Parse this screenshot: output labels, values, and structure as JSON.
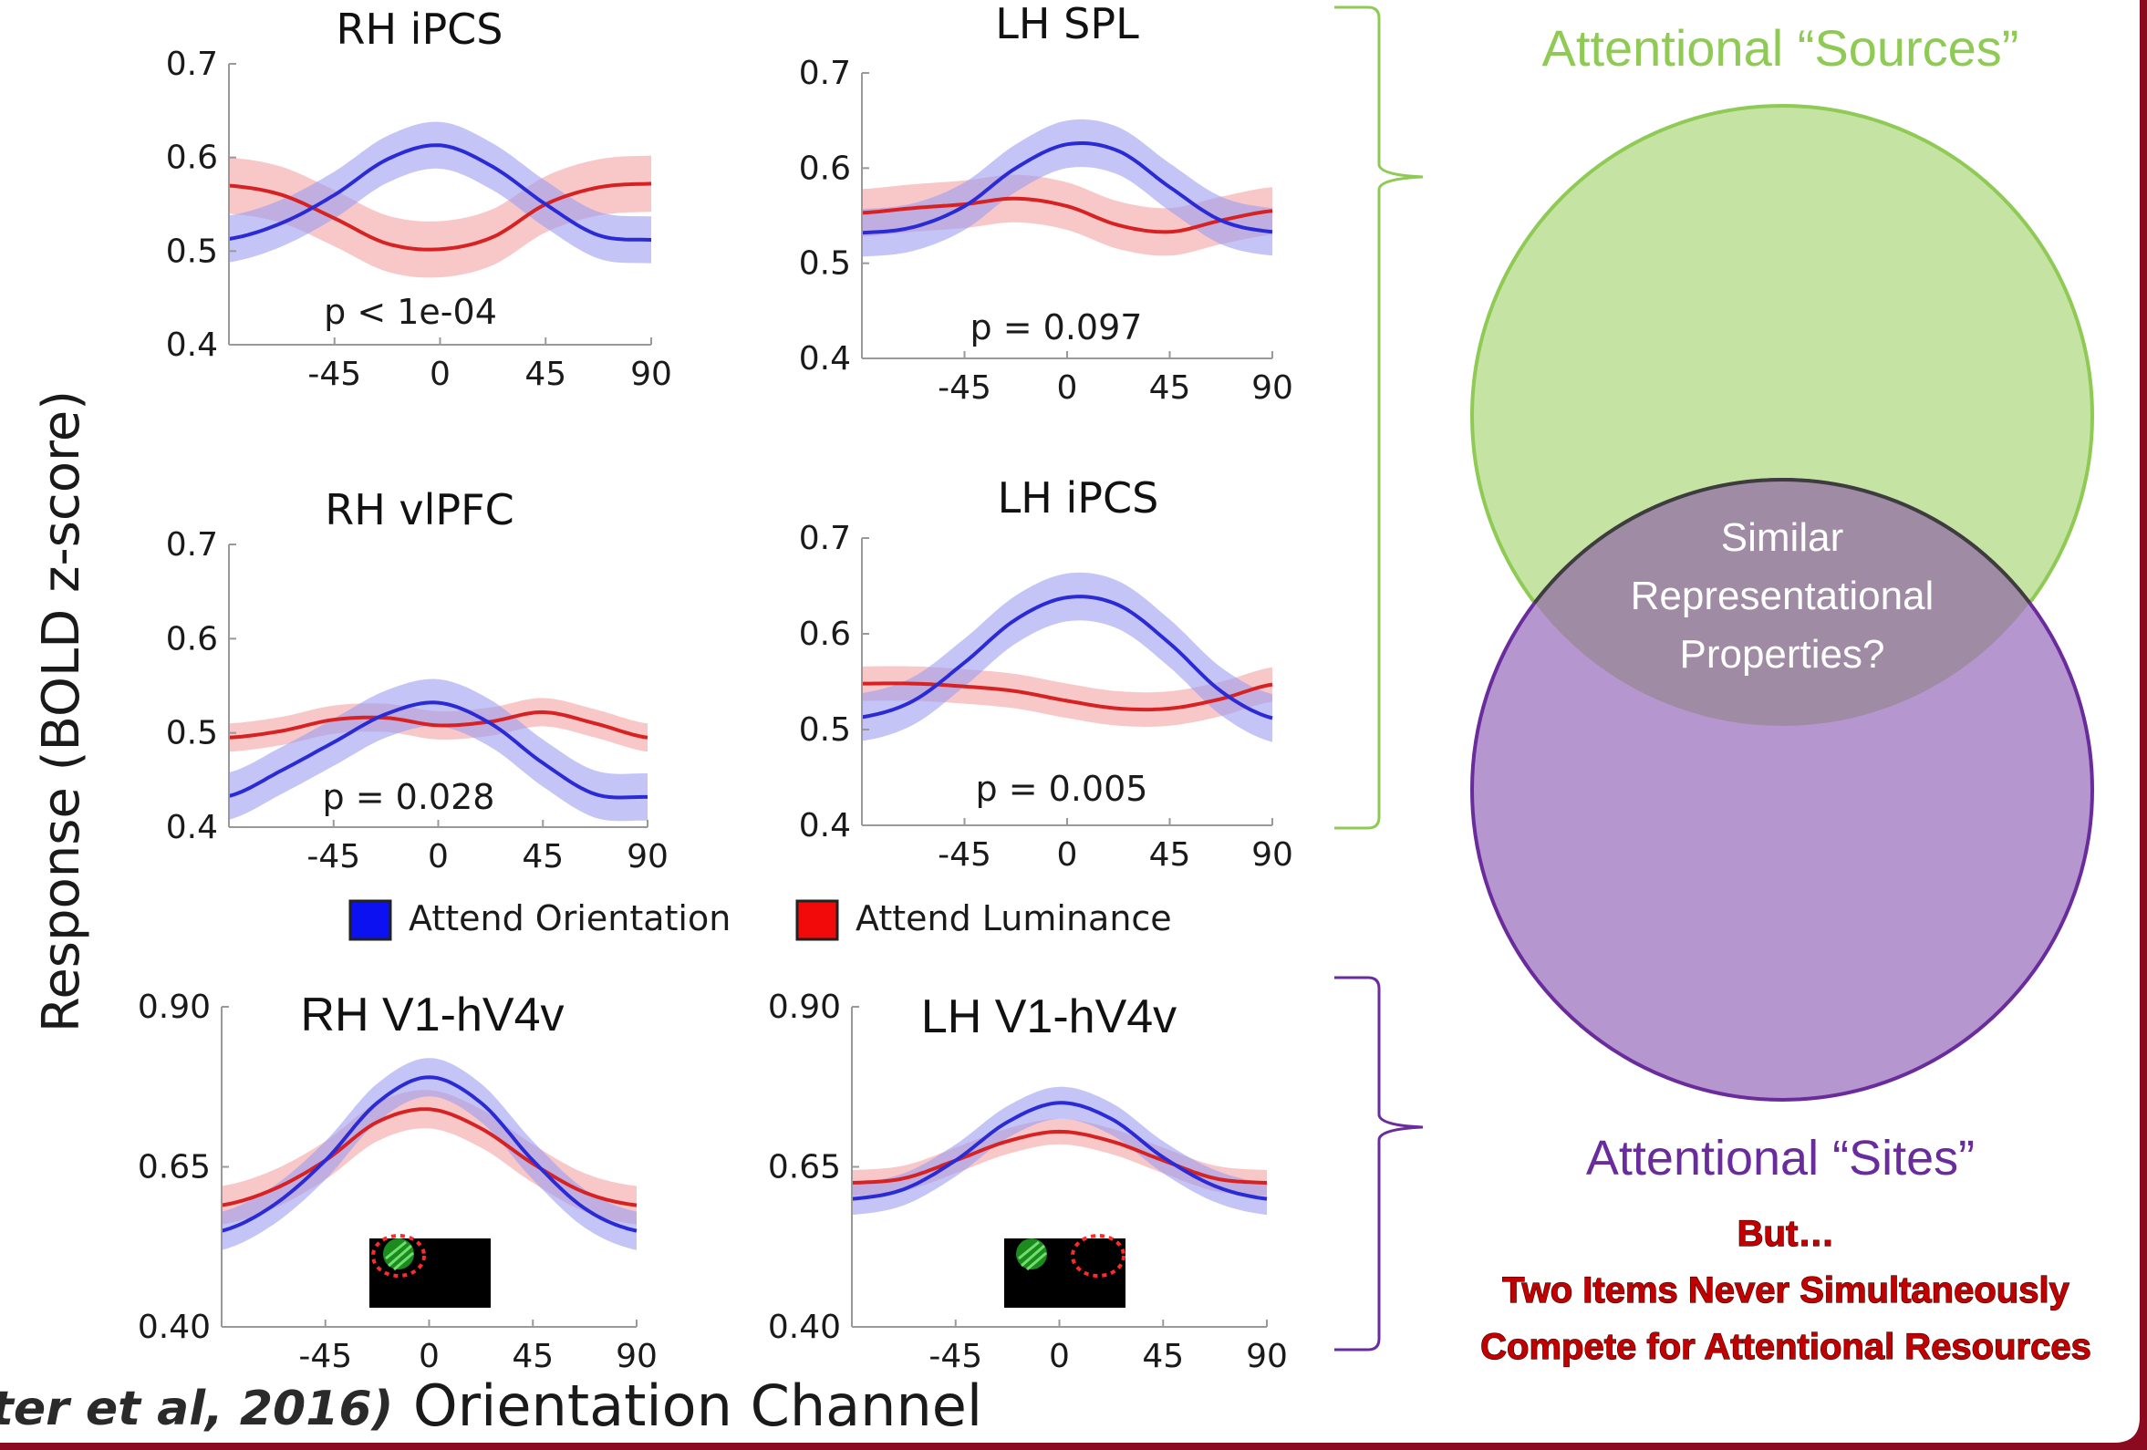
{
  "chart_data": [
    {
      "type": "line",
      "title": "RH iPCS",
      "x": [
        -90,
        -67.5,
        -45,
        -22.5,
        0,
        22.5,
        45,
        67.5,
        90
      ],
      "xticks": [
        "-45",
        "0",
        "45",
        "90"
      ],
      "ylim": [
        0.4,
        0.7
      ],
      "yticks": [
        "0.4",
        "0.5",
        "0.6",
        "0.7"
      ],
      "annotation": "p < 1e-04",
      "series": [
        {
          "name": "Attend Orientation",
          "color": "#2b2bd6",
          "band_color": "#9d9df2",
          "values": [
            0.513,
            0.53,
            0.56,
            0.598,
            0.613,
            0.59,
            0.55,
            0.517,
            0.512
          ],
          "error": 0.025
        },
        {
          "name": "Attend Luminance",
          "color": "#d62222",
          "band_color": "#f4a3a3",
          "values": [
            0.57,
            0.56,
            0.535,
            0.508,
            0.502,
            0.515,
            0.55,
            0.568,
            0.572
          ],
          "error": 0.03
        }
      ]
    },
    {
      "type": "line",
      "title": "LH SPL",
      "x": [
        -90,
        -67.5,
        -45,
        -22.5,
        0,
        22.5,
        45,
        67.5,
        90
      ],
      "xticks": [
        "-45",
        "0",
        "45",
        "90"
      ],
      "ylim": [
        0.4,
        0.7
      ],
      "yticks": [
        "0.4",
        "0.5",
        "0.6",
        "0.7"
      ],
      "annotation": "p = 0.097",
      "series": [
        {
          "name": "Attend Orientation",
          "color": "#2b2bd6",
          "band_color": "#9d9df2",
          "values": [
            0.532,
            0.538,
            0.56,
            0.6,
            0.625,
            0.618,
            0.58,
            0.545,
            0.533
          ],
          "error": 0.025
        },
        {
          "name": "Attend Luminance",
          "color": "#d62222",
          "band_color": "#f4a3a3",
          "values": [
            0.553,
            0.558,
            0.562,
            0.568,
            0.56,
            0.54,
            0.533,
            0.545,
            0.555
          ],
          "error": 0.025
        }
      ]
    },
    {
      "type": "line",
      "title": "RH vlPFC",
      "x": [
        -90,
        -67.5,
        -45,
        -22.5,
        0,
        22.5,
        45,
        67.5,
        90
      ],
      "xticks": [
        "-45",
        "0",
        "45",
        "90"
      ],
      "ylim": [
        0.4,
        0.7
      ],
      "yticks": [
        "0.4",
        "0.5",
        "0.6",
        "0.7"
      ],
      "annotation": "p = 0.028",
      "series": [
        {
          "name": "Attend Orientation",
          "color": "#2b2bd6",
          "band_color": "#9d9df2",
          "values": [
            0.433,
            0.46,
            0.49,
            0.52,
            0.532,
            0.51,
            0.468,
            0.435,
            0.432
          ],
          "error": 0.025
        },
        {
          "name": "Attend Luminance",
          "color": "#d62222",
          "band_color": "#f4a3a3",
          "values": [
            0.495,
            0.502,
            0.514,
            0.516,
            0.508,
            0.512,
            0.522,
            0.51,
            0.495
          ],
          "error": 0.015
        }
      ]
    },
    {
      "type": "line",
      "title": "LH iPCS",
      "x": [
        -90,
        -67.5,
        -45,
        -22.5,
        0,
        22.5,
        45,
        67.5,
        90
      ],
      "xticks": [
        "-45",
        "0",
        "45",
        "90"
      ],
      "ylim": [
        0.4,
        0.7
      ],
      "yticks": [
        "0.4",
        "0.5",
        "0.6",
        "0.7"
      ],
      "annotation": "p = 0.005",
      "series": [
        {
          "name": "Attend Orientation",
          "color": "#2b2bd6",
          "band_color": "#9d9df2",
          "values": [
            0.513,
            0.53,
            0.57,
            0.615,
            0.638,
            0.63,
            0.59,
            0.54,
            0.512
          ],
          "error": 0.025
        },
        {
          "name": "Attend Luminance",
          "color": "#d62222",
          "band_color": "#f4a3a3",
          "values": [
            0.548,
            0.548,
            0.545,
            0.54,
            0.53,
            0.522,
            0.522,
            0.532,
            0.547
          ],
          "error": 0.018
        }
      ]
    },
    {
      "type": "line",
      "title": "RH V1-hV4v",
      "x": [
        -90,
        -67.5,
        -45,
        -22.5,
        0,
        22.5,
        45,
        67.5,
        90
      ],
      "xticks": [
        "-45",
        "0",
        "45",
        "90"
      ],
      "ylim": [
        0.4,
        0.9
      ],
      "yticks": [
        "0.40",
        "0.65",
        "0.90"
      ],
      "annotation": "",
      "series": [
        {
          "name": "Attend Orientation",
          "color": "#2b2bd6",
          "band_color": "#9d9df2",
          "values": [
            0.55,
            0.59,
            0.66,
            0.75,
            0.79,
            0.75,
            0.66,
            0.585,
            0.55
          ],
          "error": 0.03
        },
        {
          "name": "Attend Luminance",
          "color": "#d62222",
          "band_color": "#f4a3a3",
          "values": [
            0.59,
            0.615,
            0.66,
            0.72,
            0.74,
            0.71,
            0.655,
            0.61,
            0.59
          ],
          "error": 0.03
        }
      ]
    },
    {
      "type": "line",
      "title": "LH V1-hV4v",
      "x": [
        -90,
        -67.5,
        -45,
        -22.5,
        0,
        22.5,
        45,
        67.5,
        90
      ],
      "xticks": [
        "-45",
        "0",
        "45",
        "90"
      ],
      "ylim": [
        0.4,
        0.9
      ],
      "yticks": [
        "0.40",
        "0.65",
        "0.90"
      ],
      "annotation": "",
      "series": [
        {
          "name": "Attend Orientation",
          "color": "#2b2bd6",
          "band_color": "#9d9df2",
          "values": [
            0.6,
            0.615,
            0.66,
            0.72,
            0.75,
            0.725,
            0.665,
            0.62,
            0.6
          ],
          "error": 0.025
        },
        {
          "name": "Attend Luminance",
          "color": "#d62222",
          "band_color": "#f4a3a3",
          "values": [
            0.625,
            0.632,
            0.66,
            0.69,
            0.705,
            0.69,
            0.66,
            0.632,
            0.625
          ],
          "error": 0.02
        }
      ]
    }
  ],
  "labels": {
    "ylabel": "Response (BOLD z-score)",
    "xlabel": "Orientation Channel",
    "citation": "ter et al, 2016)"
  },
  "legend": {
    "orientation": "Attend Orientation",
    "luminance": "Attend Luminance",
    "orientation_color": "#0b11f0",
    "luminance_color": "#f20a0a"
  },
  "venn": {
    "sources_label": "Attentional “Sources”",
    "sites_label": "Attentional “Sites”",
    "overlap_label": [
      "Similar",
      "Representational",
      "Properties?"
    ],
    "sources_color": "#c5e3a2",
    "sources_stroke": "#8fca55",
    "sites_color": "#b596cf",
    "sites_stroke": "#6a2c9c",
    "overlap_color": "#9f8ba3",
    "sources_text_color": "#8fca55",
    "sites_text_color": "#6a2c9c"
  },
  "caveat": {
    "line1": "But…",
    "line2": "Two Items Never Simultaneously",
    "line3": "Compete for Attentional Resources",
    "color": "#c20000"
  }
}
